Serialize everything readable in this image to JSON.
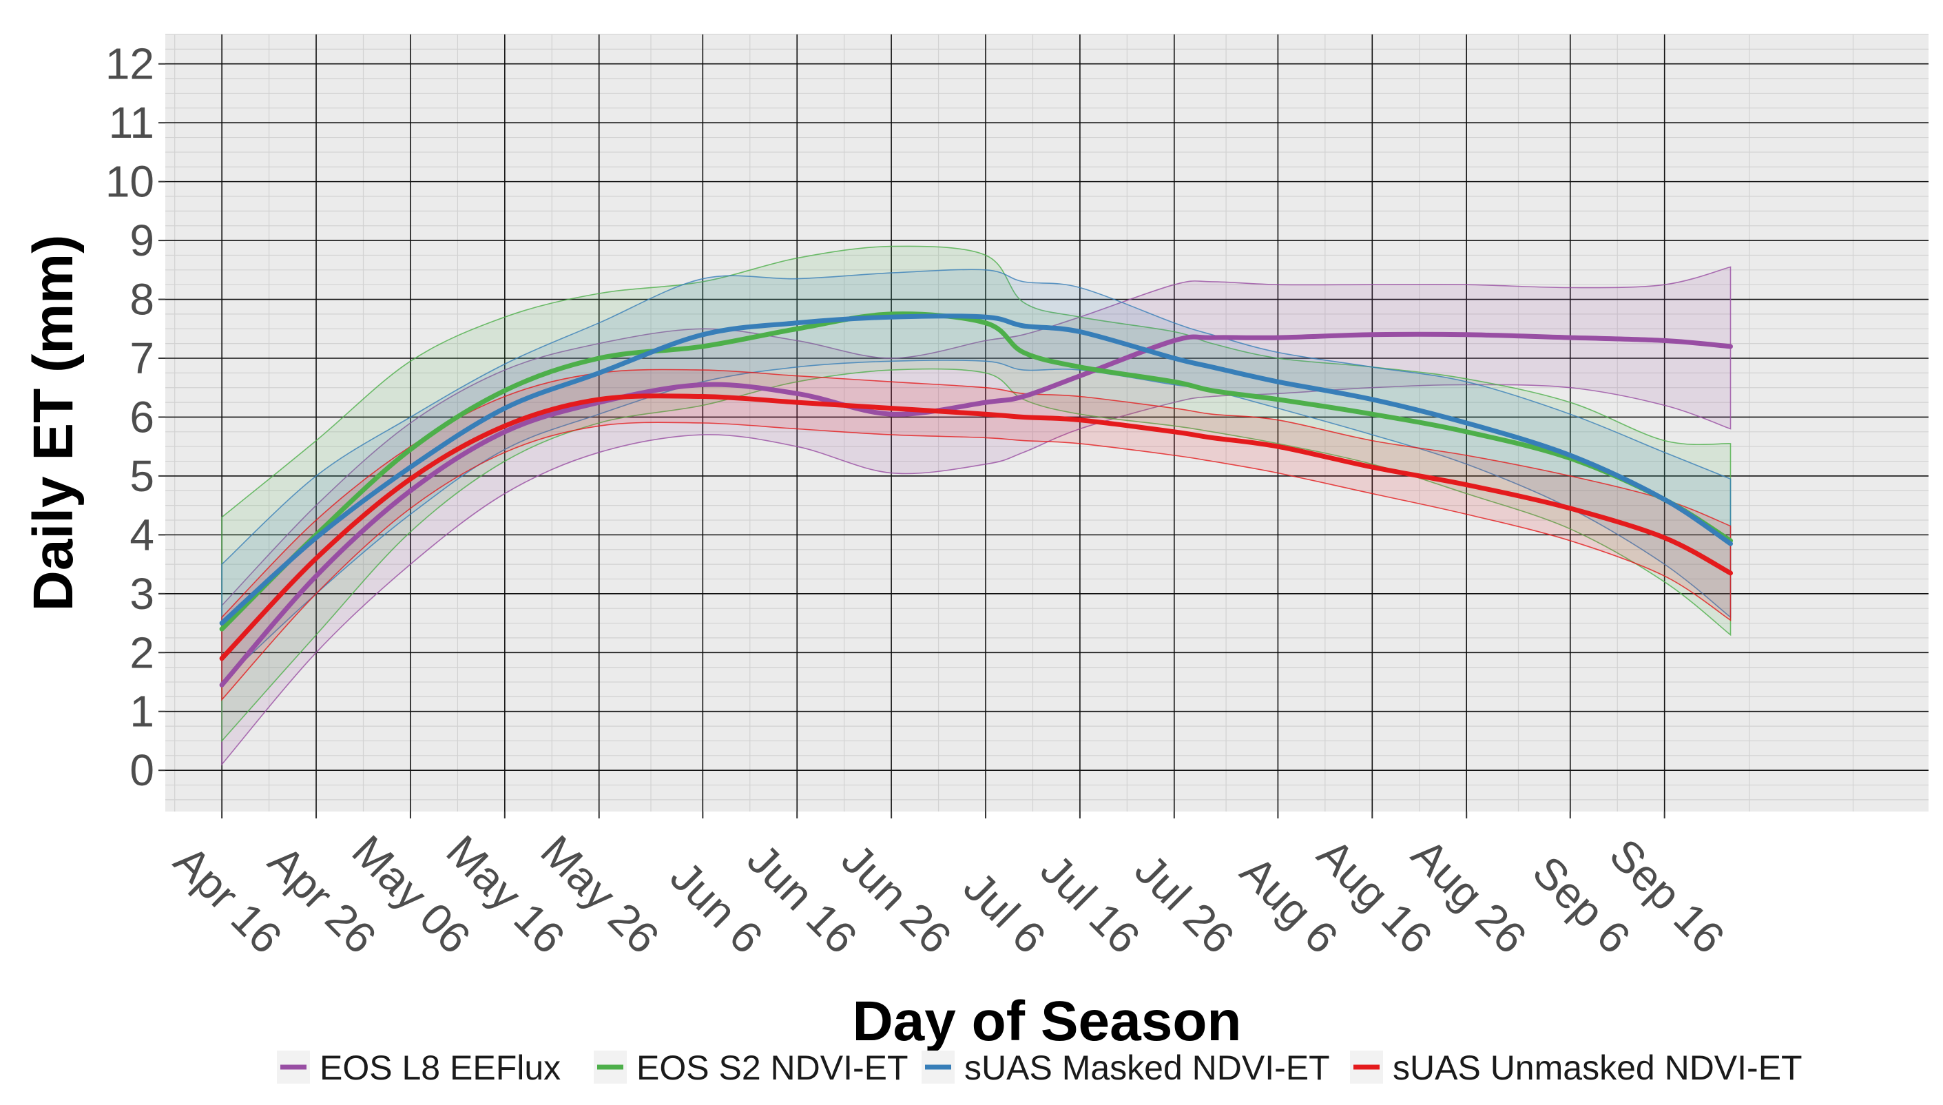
{
  "chart_data": {
    "type": "line",
    "title": "",
    "xlabel": "Day of Season",
    "ylabel": "Daily ET (mm)",
    "ylim": [
      -0.7,
      12.5
    ],
    "xlim_day_of_year": [
      90,
      277
    ],
    "y_ticks": [
      0,
      1,
      2,
      3,
      4,
      5,
      6,
      7,
      8,
      9,
      10,
      11,
      12
    ],
    "x_ticks": [
      {
        "label": "Apr 16",
        "doy": 96
      },
      {
        "label": "Apr 26",
        "doy": 106
      },
      {
        "label": "May 06",
        "doy": 116
      },
      {
        "label": "May 16",
        "doy": 126
      },
      {
        "label": "May 26",
        "doy": 136
      },
      {
        "label": "Jun 6",
        "doy": 147
      },
      {
        "label": "Jun 16",
        "doy": 157
      },
      {
        "label": "Jun 26",
        "doy": 167
      },
      {
        "label": "Jul 6",
        "doy": 177
      },
      {
        "label": "Jul 16",
        "doy": 187
      },
      {
        "label": "Jul 26",
        "doy": 197
      },
      {
        "label": "Aug 6",
        "doy": 208
      },
      {
        "label": "Aug 16",
        "doy": 218
      },
      {
        "label": "Aug 26",
        "doy": 228
      },
      {
        "label": "Sep 6",
        "doy": 239
      },
      {
        "label": "Sep 16",
        "doy": 249
      }
    ],
    "x": [
      96,
      106,
      116,
      126,
      136,
      147,
      157,
      167,
      177,
      181,
      187,
      197,
      201,
      208,
      218,
      228,
      239,
      249,
      256
    ],
    "series": [
      {
        "name": "EOS L8 EEFlux",
        "color": "#984EA3",
        "values": [
          1.45,
          3.3,
          4.75,
          5.75,
          6.25,
          6.55,
          6.4,
          6.05,
          6.25,
          6.35,
          6.7,
          7.3,
          7.35,
          7.35,
          7.4,
          7.4,
          7.35,
          7.3,
          7.2
        ],
        "lower": [
          0.1,
          2.0,
          3.5,
          4.7,
          5.4,
          5.7,
          5.5,
          5.05,
          5.2,
          5.4,
          5.8,
          6.25,
          6.35,
          6.4,
          6.5,
          6.55,
          6.5,
          6.2,
          5.8
        ],
        "upper": [
          2.8,
          4.5,
          5.9,
          6.8,
          7.25,
          7.5,
          7.3,
          7.0,
          7.3,
          7.4,
          7.7,
          8.25,
          8.3,
          8.25,
          8.25,
          8.25,
          8.2,
          8.25,
          8.55
        ]
      },
      {
        "name": "EOS S2 NDVI-ET",
        "color": "#4DAF4A",
        "values": [
          2.4,
          4.0,
          5.45,
          6.45,
          7.0,
          7.2,
          7.5,
          7.75,
          7.6,
          7.1,
          6.85,
          6.6,
          6.45,
          6.3,
          6.05,
          5.75,
          5.3,
          4.6,
          3.9
        ],
        "lower": [
          0.5,
          2.3,
          4.05,
          5.25,
          5.9,
          6.2,
          6.6,
          6.8,
          6.75,
          6.3,
          6.05,
          5.85,
          5.75,
          5.55,
          5.2,
          4.7,
          4.1,
          3.2,
          2.3
        ],
        "upper": [
          4.3,
          5.6,
          6.95,
          7.7,
          8.1,
          8.3,
          8.7,
          8.9,
          8.75,
          7.95,
          7.7,
          7.45,
          7.25,
          7.0,
          6.85,
          6.65,
          6.25,
          5.6,
          5.55
        ]
      },
      {
        "name": "sUAS Masked NDVI-ET",
        "color": "#377EB8",
        "values": [
          2.5,
          3.95,
          5.15,
          6.15,
          6.75,
          7.4,
          7.6,
          7.7,
          7.7,
          7.55,
          7.45,
          7.0,
          6.85,
          6.6,
          6.3,
          5.9,
          5.35,
          4.6,
          3.85
        ],
        "lower": [
          1.5,
          3.0,
          4.35,
          5.45,
          6.05,
          6.6,
          6.85,
          6.95,
          6.95,
          6.8,
          6.8,
          6.55,
          6.45,
          6.15,
          5.7,
          5.2,
          4.45,
          3.5,
          2.6
        ],
        "upper": [
          3.5,
          5.0,
          6.0,
          6.9,
          7.6,
          8.35,
          8.35,
          8.45,
          8.5,
          8.3,
          8.2,
          7.6,
          7.4,
          7.1,
          6.85,
          6.6,
          6.05,
          5.4,
          4.95
        ]
      },
      {
        "name": "sUAS Unmasked NDVI-ET",
        "color": "#E41A1C",
        "values": [
          1.9,
          3.6,
          4.95,
          5.85,
          6.3,
          6.35,
          6.25,
          6.15,
          6.05,
          6.0,
          5.95,
          5.75,
          5.65,
          5.5,
          5.15,
          4.85,
          4.45,
          3.95,
          3.35
        ],
        "lower": [
          1.2,
          3.0,
          4.45,
          5.4,
          5.85,
          5.9,
          5.8,
          5.7,
          5.65,
          5.6,
          5.55,
          5.35,
          5.25,
          5.05,
          4.7,
          4.35,
          3.9,
          3.3,
          2.55
        ],
        "upper": [
          2.6,
          4.25,
          5.5,
          6.35,
          6.75,
          6.8,
          6.7,
          6.6,
          6.5,
          6.4,
          6.35,
          6.15,
          6.05,
          5.95,
          5.6,
          5.35,
          5.0,
          4.6,
          4.15
        ]
      }
    ],
    "legend_position": "bottom",
    "grid": true
  }
}
